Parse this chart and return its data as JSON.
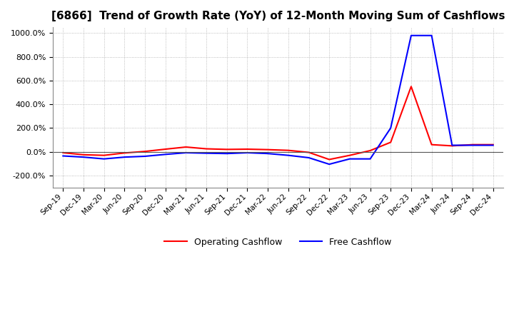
{
  "title": "[6866]  Trend of Growth Rate (YoY) of 12-Month Moving Sum of Cashflows",
  "title_fontsize": 11,
  "ylim": [
    -300,
    1050
  ],
  "yticks": [
    -200,
    0,
    200,
    400,
    600,
    800,
    1000
  ],
  "background_color": "#ffffff",
  "grid_color": "#aaaaaa",
  "legend_labels": [
    "Operating Cashflow",
    "Free Cashflow"
  ],
  "legend_colors": [
    "#ff0000",
    "#0000ff"
  ],
  "x_labels": [
    "Sep-19",
    "Dec-19",
    "Mar-20",
    "Jun-20",
    "Sep-20",
    "Dec-20",
    "Mar-21",
    "Jun-21",
    "Sep-21",
    "Dec-21",
    "Mar-22",
    "Jun-22",
    "Sep-22",
    "Dec-22",
    "Mar-23",
    "Jun-23",
    "Sep-23",
    "Dec-23",
    "Mar-24",
    "Jun-24",
    "Sep-24",
    "Dec-24"
  ],
  "operating_cashflow": [
    -8,
    -25,
    -30,
    -10,
    3,
    22,
    40,
    25,
    20,
    22,
    18,
    12,
    -5,
    -65,
    -30,
    10,
    80,
    550,
    60,
    50,
    60,
    60
  ],
  "free_cashflow": [
    -35,
    -45,
    -60,
    -45,
    -38,
    -22,
    -8,
    -12,
    -15,
    -8,
    -15,
    -30,
    -50,
    -105,
    -60,
    -60,
    200,
    980,
    980,
    55,
    55,
    55
  ]
}
